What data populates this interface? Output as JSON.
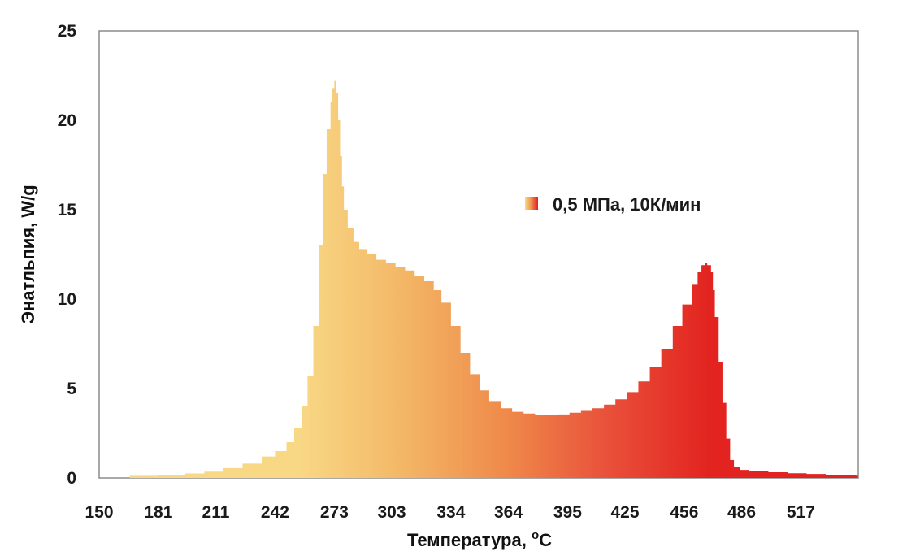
{
  "chart_data": {
    "type": "area",
    "xlabel": "Температура, ",
    "xlabel_unit": "C",
    "xlabel_degree": "o",
    "ylabel": "Энатльпия, W/g",
    "x_tick_labels": [
      "150",
      "181",
      "211",
      "242",
      "273",
      "303",
      "334",
      "364",
      "395",
      "425",
      "456",
      "486",
      "517"
    ],
    "y_tick_labels": [
      "0",
      "5",
      "10",
      "15",
      "20",
      "25"
    ],
    "xlim": [
      150,
      547
    ],
    "ylim": [
      0,
      25
    ],
    "grid": false,
    "legend_position": "top-right",
    "series": [
      {
        "name": "0,5 МПа, 10К/мин",
        "gradient_colors": [
          "#f8d885",
          "#f3b766",
          "#ef8a4a",
          "#e9503a",
          "#e2231f"
        ],
        "x": [
          166,
          181,
          195,
          205,
          215,
          225,
          235,
          242,
          248,
          252,
          256,
          259,
          262,
          265,
          267,
          269,
          271,
          272,
          273,
          274,
          275,
          276,
          277,
          278,
          280,
          283,
          286,
          290,
          295,
          300,
          305,
          310,
          315,
          320,
          325,
          329,
          334,
          339,
          344,
          349,
          354,
          360,
          366,
          372,
          378,
          384,
          390,
          396,
          402,
          408,
          414,
          420,
          426,
          432,
          438,
          444,
          450,
          455,
          460,
          463,
          465,
          467,
          468,
          470,
          471,
          472,
          474,
          476,
          478,
          480,
          482,
          485,
          490,
          500,
          510,
          520,
          530,
          540,
          546
        ],
        "y": [
          0.12,
          0.15,
          0.25,
          0.35,
          0.55,
          0.8,
          1.2,
          1.5,
          2.0,
          2.8,
          4.0,
          5.7,
          8.5,
          13.0,
          17.0,
          19.5,
          21.0,
          21.8,
          22.2,
          21.5,
          20.0,
          18.0,
          16.3,
          15.0,
          14.0,
          13.2,
          12.8,
          12.5,
          12.2,
          12.0,
          11.8,
          11.6,
          11.3,
          11.0,
          10.5,
          9.8,
          8.5,
          7.0,
          5.8,
          4.9,
          4.3,
          3.9,
          3.7,
          3.6,
          3.5,
          3.5,
          3.55,
          3.65,
          3.75,
          3.9,
          4.1,
          4.4,
          4.8,
          5.4,
          6.2,
          7.2,
          8.5,
          9.7,
          10.8,
          11.5,
          11.9,
          12.0,
          11.9,
          11.5,
          10.5,
          9.0,
          6.5,
          4.2,
          2.2,
          1.0,
          0.6,
          0.45,
          0.38,
          0.32,
          0.26,
          0.22,
          0.18,
          0.14,
          0.12
        ]
      }
    ]
  }
}
